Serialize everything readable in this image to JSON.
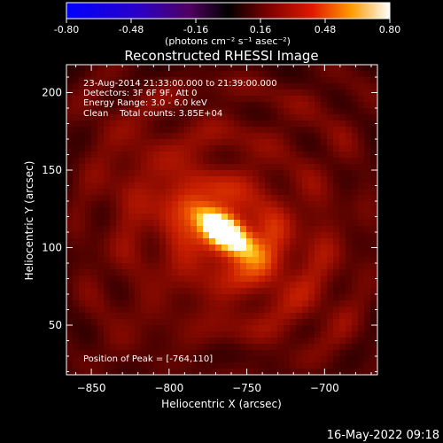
{
  "chart_data": {
    "type": "heatmap",
    "title": "Reconstructed RHESSI Image",
    "colorbar": {
      "ticks": [
        "-0.80",
        "-0.48",
        "-0.16",
        "0.16",
        "0.48",
        "0.80"
      ],
      "range": [
        -0.8,
        0.8
      ],
      "colormap": "red temperature",
      "units_label": "(photons cm⁻² s⁻¹ asec⁻²)"
    },
    "xlabel": "Heliocentric X (arcsec)",
    "ylabel": "Heliocentric Y (arcsec)",
    "xlim": [
      -866,
      -666
    ],
    "ylim": [
      18,
      218
    ],
    "xticks": [
      -850,
      -800,
      -750,
      -700
    ],
    "yticks": [
      50,
      100,
      150,
      200
    ],
    "xtick_labels": [
      "−850",
      "−800",
      "−750",
      "−700"
    ],
    "ytick_labels": [
      "50",
      "100",
      "150",
      "200"
    ],
    "annotations": [
      "23-Aug-2014 21:33:00.000 to 21:39:00.000",
      "Detectors: 3F 6F 9F, Att 0",
      "Energy Range: 3.0 - 6.0 keV",
      "Clean    Total counts: 3.85E+04"
    ],
    "peak_label": "Position of Peak = [-764,110]",
    "peak": {
      "x": -764,
      "y": 110
    },
    "timestamp": "16-May-2022 09:18"
  }
}
